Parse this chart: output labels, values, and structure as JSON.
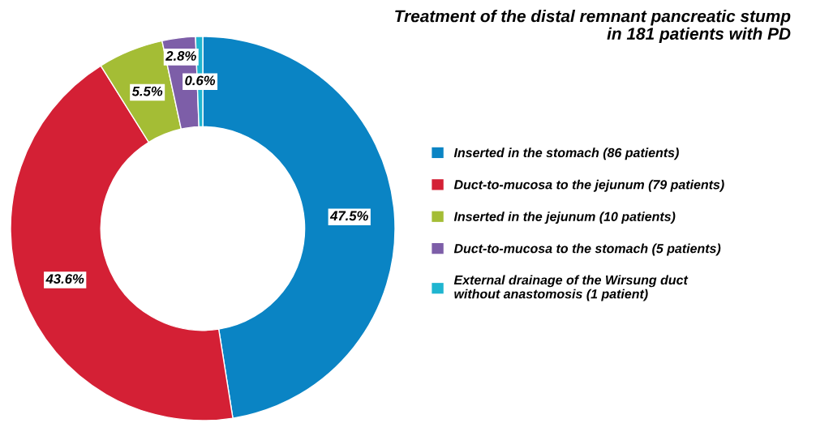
{
  "chart_data": {
    "type": "donut",
    "title": "Treatment of the distal remnant pancreatic stump\nin 181 patients with PD",
    "categories": [
      "Inserted in the stomach (86 patients)",
      "Duct-to-mucosa to the jejunum (79 patients)",
      "Inserted in the jejunum (10 patients)",
      "Duct-to-mucosa to the stomach (5 patients)",
      "External drainage of the Wirsung duct\nwithout anastomosis (1 patient)"
    ],
    "values": [
      47.5,
      43.6,
      5.5,
      2.8,
      0.6
    ],
    "colors": [
      "#0a84c4",
      "#d42035",
      "#a4bd35",
      "#7d5ea8",
      "#1fb5d0"
    ],
    "value_labels": [
      "47.5%",
      "43.6%",
      "5.5%",
      "2.8%",
      "0.6%"
    ],
    "legend": "right"
  }
}
